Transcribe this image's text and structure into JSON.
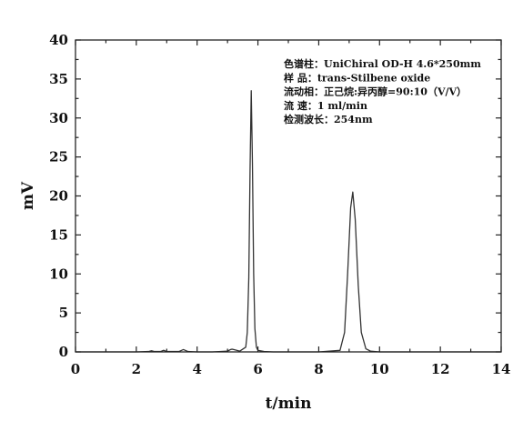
{
  "chart_data": {
    "type": "line",
    "xlabel": "t/min",
    "ylabel": "mV",
    "xlim": [
      0,
      14
    ],
    "ylim": [
      0,
      40
    ],
    "x_ticks": [
      "0",
      "2",
      "4",
      "6",
      "8",
      "10",
      "12",
      "14"
    ],
    "y_ticks": [
      "0",
      "5",
      "10",
      "15",
      "20",
      "25",
      "30",
      "35",
      "40"
    ],
    "annotations": [
      "色谱柱：UniChiral OD-H 4.6*250mm",
      "样  品：trans-Stilbene oxide",
      "流动相：正己烷:异丙醇=90:10（V/V）",
      "流  速：1 ml/min",
      "检测波长：254nm"
    ],
    "baseline": 0,
    "peaks": [
      {
        "center": 2.5,
        "height": 0.15,
        "width": 0.05
      },
      {
        "center": 2.9,
        "height": 0.2,
        "width": 0.05
      },
      {
        "center": 3.55,
        "height": 0.3,
        "width": 0.04
      },
      {
        "center": 5.15,
        "height": 0.35,
        "width": 0.07
      },
      {
        "center": 5.78,
        "height": 33.5,
        "width": 0.06
      },
      {
        "center": 9.12,
        "height": 20.5,
        "width": 0.1
      }
    ],
    "x": [
      0,
      1,
      2,
      2.4,
      2.5,
      2.6,
      2.8,
      2.9,
      3.0,
      3.4,
      3.55,
      3.7,
      4.0,
      4.5,
      5.0,
      5.1,
      5.15,
      5.2,
      5.4,
      5.6,
      5.65,
      5.7,
      5.74,
      5.78,
      5.82,
      5.86,
      5.9,
      5.95,
      6.0,
      6.2,
      6.5,
      7.0,
      8.0,
      8.7,
      8.85,
      8.95,
      9.05,
      9.12,
      9.2,
      9.3,
      9.4,
      9.55,
      9.7,
      10.0,
      10.5,
      11,
      12,
      13,
      14
    ],
    "y": [
      0,
      0,
      0,
      0.05,
      0.15,
      0.05,
      0.05,
      0.2,
      0.05,
      0.05,
      0.3,
      0.05,
      0,
      0,
      0.1,
      0.3,
      0.35,
      0.3,
      0.1,
      0.6,
      2.5,
      9.5,
      23,
      33.5,
      24,
      10,
      3,
      0.6,
      0.2,
      0.05,
      0,
      0,
      0,
      0.2,
      2.5,
      10,
      18.5,
      20.5,
      17,
      8.5,
      2.5,
      0.4,
      0.1,
      0,
      0,
      0,
      0,
      0,
      0
    ]
  }
}
